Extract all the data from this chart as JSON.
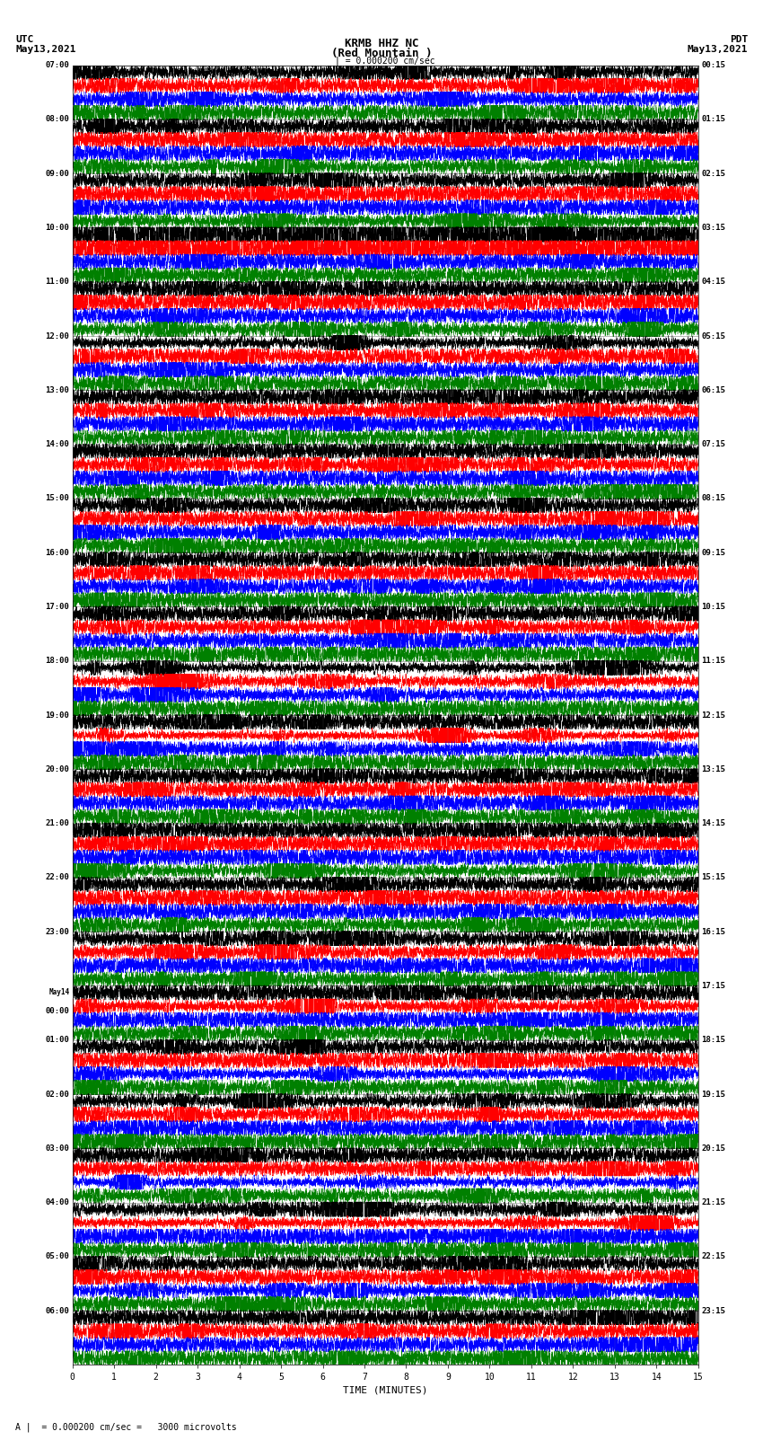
{
  "title_center": "KRMB HHZ NC\n(Red Mountain )",
  "title_left": "UTC\nMay13,2021",
  "title_right": "PDT\nMay13,2021",
  "scale_bar_text": "| = 0.000200 cm/sec",
  "bottom_note": "A |  = 0.000200 cm/sec =   3000 microvolts",
  "xlabel": "TIME (MINUTES)",
  "xticks": [
    0,
    1,
    2,
    3,
    4,
    5,
    6,
    7,
    8,
    9,
    10,
    11,
    12,
    13,
    14,
    15
  ],
  "left_times": [
    "07:00",
    "08:00",
    "09:00",
    "10:00",
    "11:00",
    "12:00",
    "13:00",
    "14:00",
    "15:00",
    "16:00",
    "17:00",
    "18:00",
    "19:00",
    "20:00",
    "21:00",
    "22:00",
    "23:00",
    "May14\n00:00",
    "01:00",
    "02:00",
    "03:00",
    "04:00",
    "05:00",
    "06:00"
  ],
  "right_times": [
    "00:15",
    "01:15",
    "02:15",
    "03:15",
    "04:15",
    "05:15",
    "06:15",
    "07:15",
    "08:15",
    "09:15",
    "10:15",
    "11:15",
    "12:15",
    "13:15",
    "14:15",
    "15:15",
    "16:15",
    "17:15",
    "18:15",
    "19:15",
    "20:15",
    "21:15",
    "22:15",
    "23:15"
  ],
  "n_rows": 24,
  "traces_per_row": 4,
  "colors": [
    "black",
    "red",
    "blue",
    "green"
  ],
  "bg_color": "white",
  "special_row": 3,
  "fig_width": 8.5,
  "fig_height": 16.13
}
